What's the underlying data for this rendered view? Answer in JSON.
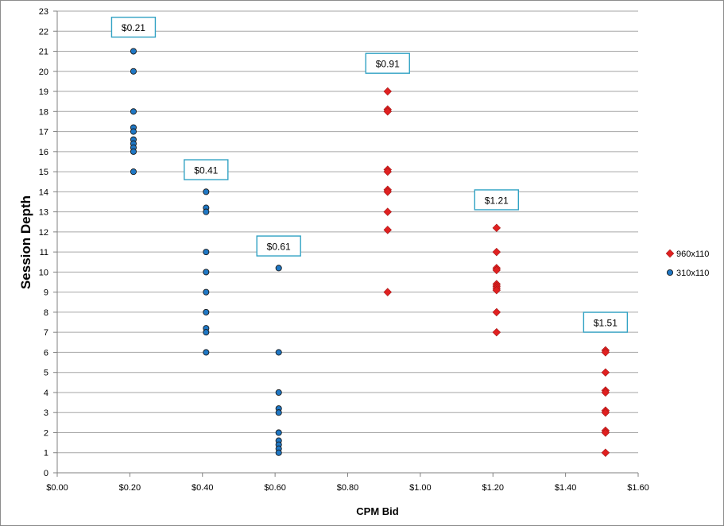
{
  "chart_data": {
    "type": "scatter",
    "title": "",
    "xlabel": "CPM Bid",
    "ylabel": "Session Depth",
    "xlim": [
      0,
      1.6
    ],
    "ylim": [
      0,
      23
    ],
    "x_tick_labels": [
      "$0.00",
      "$0.20",
      "$0.40",
      "$0.60",
      "$0.80",
      "$1.00",
      "$1.20",
      "$1.40",
      "$1.60"
    ],
    "y_tick_labels": [
      "0",
      "1",
      "2",
      "3",
      "4",
      "5",
      "6",
      "7",
      "8",
      "9",
      "10",
      "11",
      "12",
      "13",
      "14",
      "15",
      "16",
      "17",
      "18",
      "19",
      "20",
      "21",
      "22",
      "23"
    ],
    "grid": "horizontal",
    "legend_position": "right",
    "series": [
      {
        "name": "960x110",
        "marker": "diamond",
        "color": "#e02020",
        "points": [
          [
            0.91,
            19
          ],
          [
            0.91,
            18.1
          ],
          [
            0.91,
            18
          ],
          [
            0.91,
            15.1
          ],
          [
            0.91,
            15
          ],
          [
            0.91,
            14.1
          ],
          [
            0.91,
            14
          ],
          [
            0.91,
            13
          ],
          [
            0.91,
            12.1
          ],
          [
            0.91,
            9
          ],
          [
            1.21,
            12.2
          ],
          [
            1.21,
            11
          ],
          [
            1.21,
            10.2
          ],
          [
            1.21,
            10.1
          ],
          [
            1.21,
            9.4
          ],
          [
            1.21,
            9.3
          ],
          [
            1.21,
            9.2
          ],
          [
            1.21,
            9.1
          ],
          [
            1.21,
            8
          ],
          [
            1.21,
            7
          ],
          [
            1.51,
            6.1
          ],
          [
            1.51,
            6
          ],
          [
            1.51,
            5
          ],
          [
            1.51,
            4.1
          ],
          [
            1.51,
            4
          ],
          [
            1.51,
            3.1
          ],
          [
            1.51,
            3
          ],
          [
            1.51,
            2.1
          ],
          [
            1.51,
            2
          ],
          [
            1.51,
            1
          ]
        ]
      },
      {
        "name": "310x110",
        "marker": "circle",
        "color": "#1f77c4",
        "points": [
          [
            0.21,
            21
          ],
          [
            0.21,
            20
          ],
          [
            0.21,
            18
          ],
          [
            0.21,
            17.2
          ],
          [
            0.21,
            17
          ],
          [
            0.21,
            16.6
          ],
          [
            0.21,
            16.4
          ],
          [
            0.21,
            16.2
          ],
          [
            0.21,
            16
          ],
          [
            0.21,
            15
          ],
          [
            0.41,
            14
          ],
          [
            0.41,
            13.2
          ],
          [
            0.41,
            13
          ],
          [
            0.41,
            11
          ],
          [
            0.41,
            10
          ],
          [
            0.41,
            9
          ],
          [
            0.41,
            8
          ],
          [
            0.41,
            7.2
          ],
          [
            0.41,
            7
          ],
          [
            0.41,
            6
          ],
          [
            0.61,
            10.2
          ],
          [
            0.61,
            6
          ],
          [
            0.61,
            4
          ],
          [
            0.61,
            3.2
          ],
          [
            0.61,
            3
          ],
          [
            0.61,
            2
          ],
          [
            0.61,
            1.6
          ],
          [
            0.61,
            1.4
          ],
          [
            0.61,
            1.2
          ],
          [
            0.61,
            1
          ]
        ]
      }
    ],
    "annotations": [
      {
        "text": "$0.21",
        "x": 0.21,
        "y": 22.2
      },
      {
        "text": "$0.41",
        "x": 0.41,
        "y": 15.1
      },
      {
        "text": "$0.61",
        "x": 0.61,
        "y": 11.3
      },
      {
        "text": "$0.91",
        "x": 0.91,
        "y": 20.4
      },
      {
        "text": "$1.21",
        "x": 1.21,
        "y": 13.6
      },
      {
        "text": "$1.51",
        "x": 1.51,
        "y": 7.5
      }
    ]
  }
}
